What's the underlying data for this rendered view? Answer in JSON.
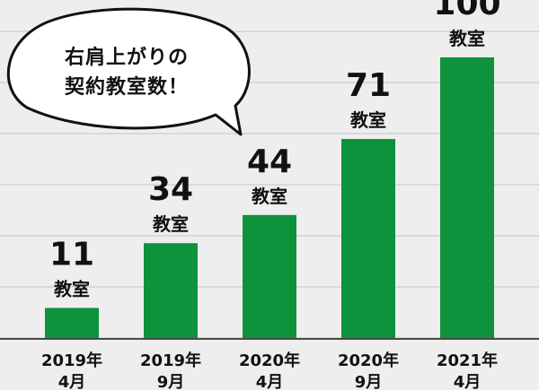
{
  "callout": {
    "line1": "右肩上がりの",
    "line2": "契約教室数！"
  },
  "colors": {
    "background": "#eeeeee",
    "bar": "#0f923c",
    "gridline": "#d2d2d2",
    "axis": "#4a4a4a",
    "text": "#111111"
  },
  "chart_data": {
    "type": "bar",
    "title": "",
    "xlabel": "",
    "ylabel": "",
    "ylim": [
      0,
      114
    ],
    "grid": true,
    "categories": [
      "2019年\n4月",
      "2019年\n9月",
      "2020年\n4月",
      "2020年\n9月",
      "2021年\n4月"
    ],
    "values": [
      11,
      34,
      44,
      71,
      100
    ],
    "value_labels": [
      "11",
      "34",
      "44",
      "71",
      "100"
    ],
    "unit_label": "教室"
  }
}
